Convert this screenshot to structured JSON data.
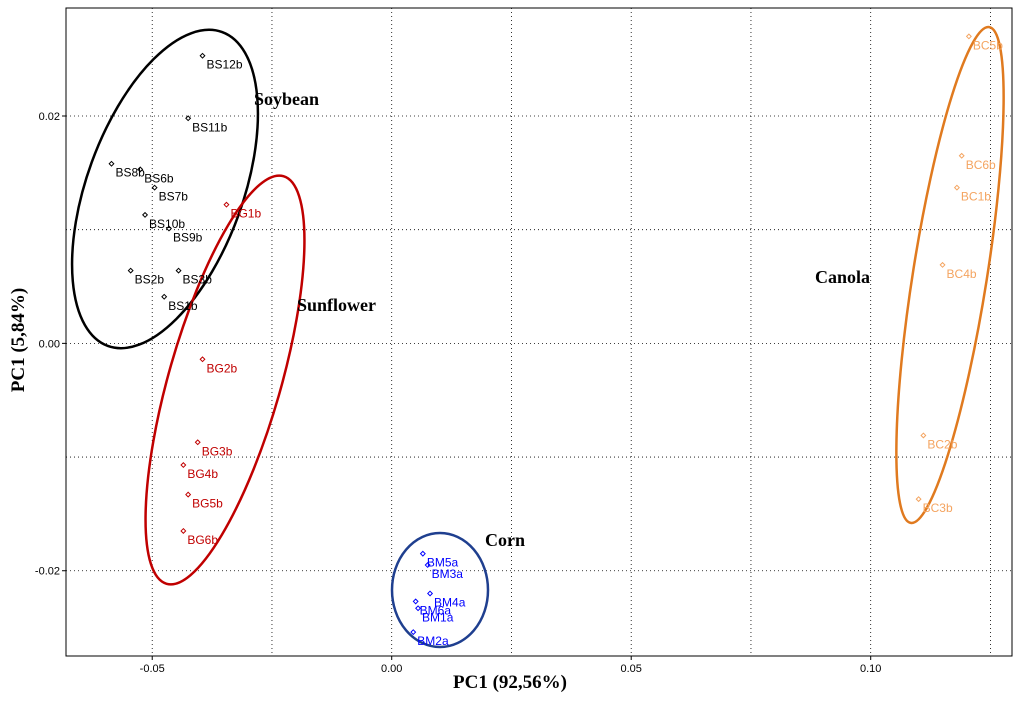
{
  "chart_data": {
    "type": "scatter",
    "xlabel": "PC1 (92,56%)",
    "ylabel": "PC1 (5,84%)",
    "xlim": [
      -0.068,
      0.1295
    ],
    "ylim": [
      -0.0275,
      0.0295
    ],
    "x_ticks": [
      {
        "value": -0.05,
        "label": "-0.05"
      },
      {
        "value": 0.0,
        "label": "0.00"
      },
      {
        "value": 0.05,
        "label": "0.05"
      },
      {
        "value": 0.1,
        "label": "0.10"
      }
    ],
    "y_ticks": [
      {
        "value": 0.02,
        "label": "0.02"
      },
      {
        "value": 0.0,
        "label": "0.00"
      },
      {
        "value": -0.02,
        "label": "-0.02"
      }
    ],
    "grid": true,
    "groups": [
      {
        "name": "Soybean",
        "color": "#000000",
        "ellipse_color": "#000000",
        "points": [
          {
            "label": "BS12b",
            "x": -0.0395,
            "y": 0.0253
          },
          {
            "label": "BS11b",
            "x": -0.0425,
            "y": 0.0198
          },
          {
            "label": "BS8b",
            "x": -0.0585,
            "y": 0.0158
          },
          {
            "label": "BS6b",
            "x": -0.0525,
            "y": 0.0153
          },
          {
            "label": "BS7b",
            "x": -0.0495,
            "y": 0.0137
          },
          {
            "label": "BS10b",
            "x": -0.0515,
            "y": 0.0113
          },
          {
            "label": "BS9b",
            "x": -0.0465,
            "y": 0.0101
          },
          {
            "label": "BS2b",
            "x": -0.0545,
            "y": 0.0064
          },
          {
            "label": "BS3b",
            "x": -0.0445,
            "y": 0.0064
          },
          {
            "label": "BS1b",
            "x": -0.0475,
            "y": 0.0041
          }
        ]
      },
      {
        "name": "Sunflower",
        "color": "#c00000",
        "ellipse_color": "#c00000",
        "points": [
          {
            "label": "BG1b",
            "x": -0.0345,
            "y": 0.0122
          },
          {
            "label": "BG2b",
            "x": -0.0395,
            "y": -0.0014
          },
          {
            "label": "BG3b",
            "x": -0.0405,
            "y": -0.0087
          },
          {
            "label": "BG4b",
            "x": -0.0435,
            "y": -0.0107
          },
          {
            "label": "BG5b",
            "x": -0.0425,
            "y": -0.0133
          },
          {
            "label": "BG6b",
            "x": -0.0435,
            "y": -0.0165
          }
        ]
      },
      {
        "name": "Corn",
        "color": "#0000ff",
        "ellipse_color": "#1f3f8f",
        "points": [
          {
            "label": "BM5a",
            "x": 0.0065,
            "y": -0.0185
          },
          {
            "label": "BM3a",
            "x": 0.0075,
            "y": -0.0195
          },
          {
            "label": "BM4a",
            "x": 0.008,
            "y": -0.022
          },
          {
            "label": "BM6a",
            "x": 0.005,
            "y": -0.0227
          },
          {
            "label": "BM1a",
            "x": 0.0055,
            "y": -0.0233
          },
          {
            "label": "BM2a",
            "x": 0.0045,
            "y": -0.0254
          }
        ]
      },
      {
        "name": "Canola",
        "color": "#f4a460",
        "ellipse_color": "#e07a1f",
        "points": [
          {
            "label": "BC5b",
            "x": 0.1205,
            "y": 0.027
          },
          {
            "label": "BC6b",
            "x": 0.119,
            "y": 0.0165
          },
          {
            "label": "BC1b",
            "x": 0.118,
            "y": 0.0137
          },
          {
            "label": "BC4b",
            "x": 0.115,
            "y": 0.0069
          },
          {
            "label": "BC2b",
            "x": 0.111,
            "y": -0.0081
          },
          {
            "label": "BC3b",
            "x": 0.11,
            "y": -0.0137
          }
        ]
      }
    ]
  }
}
